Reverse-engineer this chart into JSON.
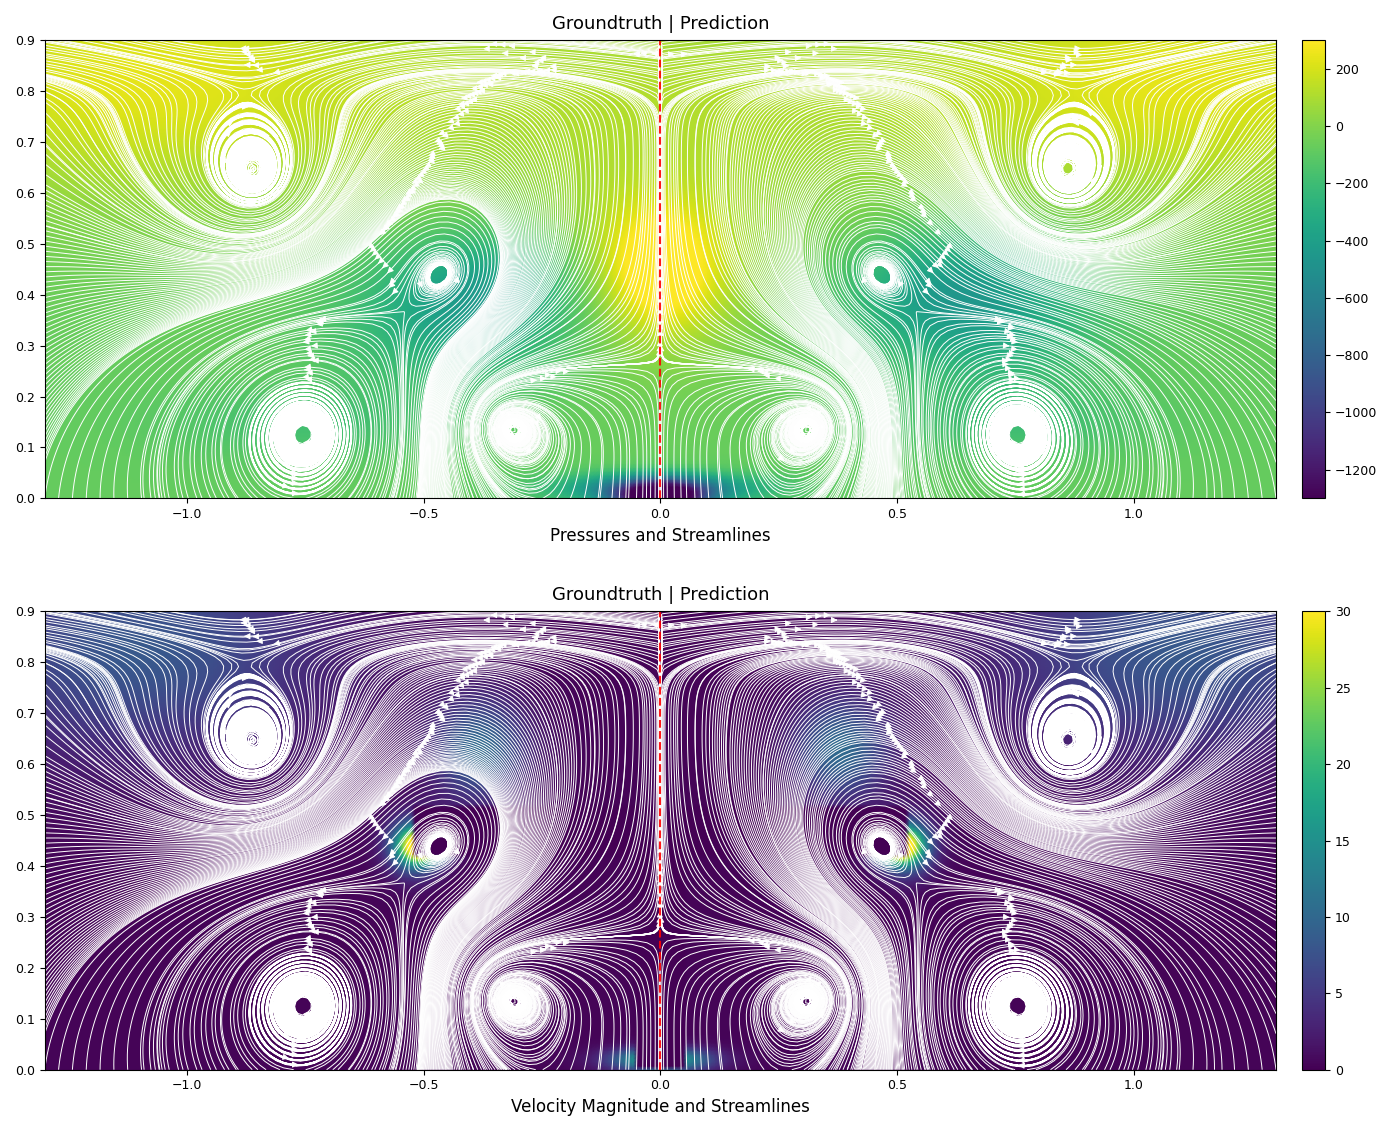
{
  "title1": "Groundtruth | Prediction",
  "title2": "Groundtruth | Prediction",
  "xlabel1": "Pressures and Streamlines",
  "xlabel2": "Velocity Magnitude and Streamlines",
  "pressure_vmin": -1300,
  "pressure_vmax": 300,
  "velocity_vmin": 0,
  "velocity_vmax": 30,
  "xlim": [
    -1.3,
    1.3
  ],
  "ylim": [
    0.0,
    0.9
  ],
  "colormap": "viridis",
  "dashed_line_x": 0.0,
  "dashed_line_color": "red",
  "streamline_color": "white",
  "figsize": [
    14.0,
    11.31
  ],
  "dpi": 100
}
